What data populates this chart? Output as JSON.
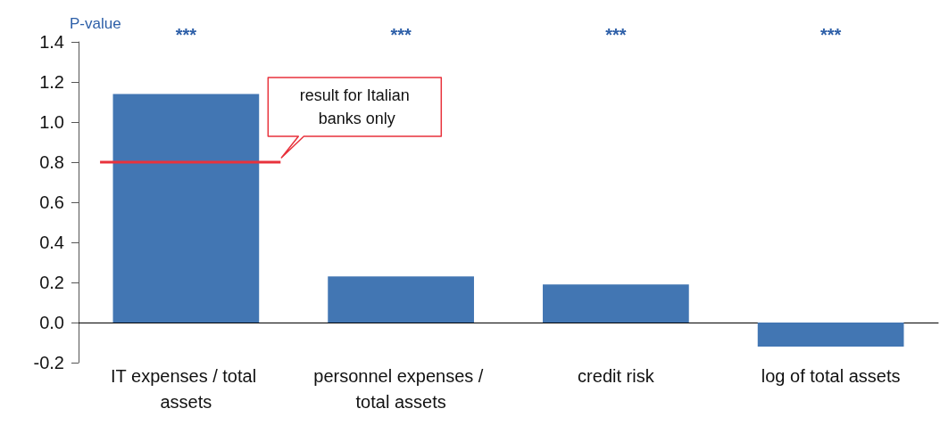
{
  "chart_data": {
    "type": "bar",
    "ylabel": "P-value",
    "categories": [
      "IT expenses / total assets",
      "personnel expenses / total assets",
      "credit risk",
      "log of total assets"
    ],
    "values": [
      1.14,
      0.23,
      0.19,
      -0.12
    ],
    "color": "#4276b3",
    "ylim": [
      -0.2,
      1.4
    ],
    "yticks": [
      -0.2,
      {
        "value": 0,
        "label": "0.0"
      },
      0.2,
      0.4,
      0.6,
      0.8,
      {
        "value": 1,
        "label": "1.0"
      },
      1.2,
      1.4
    ],
    "annotations": [
      "***",
      "***",
      "***",
      "***"
    ],
    "ref_lines": [
      {
        "axis": "y",
        "value": 0.8,
        "label": "result for Italian banks only",
        "color": "#e8323c"
      }
    ],
    "grid": false
  }
}
